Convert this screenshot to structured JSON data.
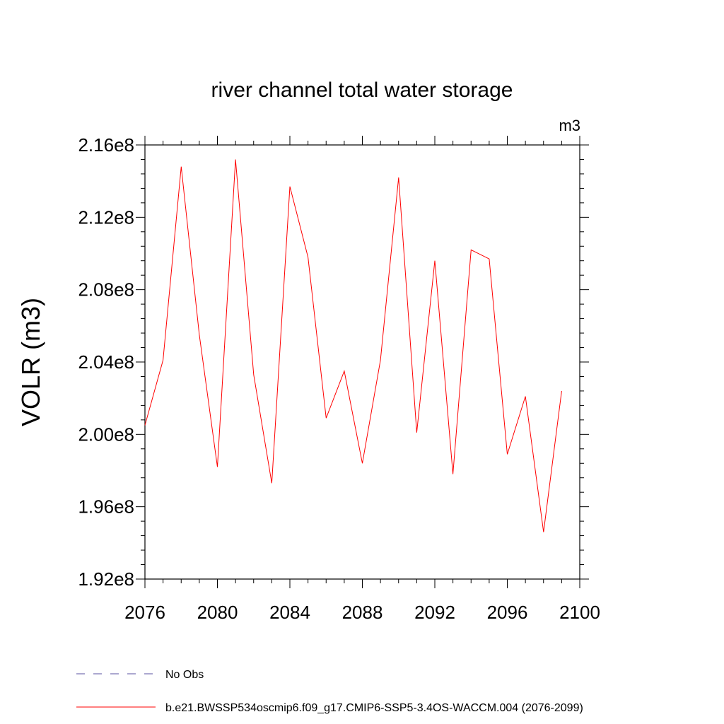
{
  "chart_data": {
    "type": "line",
    "title": "river channel total water storage",
    "units_label": "m3",
    "xlabel": "",
    "ylabel": "VOLR  (m3)",
    "xlim": [
      2076,
      2100
    ],
    "ylim": [
      192000000.0,
      216000000.0
    ],
    "x_ticks": [
      2076,
      2080,
      2084,
      2088,
      2092,
      2096,
      2100
    ],
    "x_tick_labels": [
      "2076",
      "2080",
      "2084",
      "2088",
      "2092",
      "2096",
      "2100"
    ],
    "y_ticks": [
      192000000.0,
      196000000.0,
      200000000.0,
      204000000.0,
      208000000.0,
      212000000.0,
      216000000.0
    ],
    "y_tick_labels": [
      "1.92e8",
      "1.96e8",
      "2.00e8",
      "2.04e8",
      "2.08e8",
      "2.12e8",
      "2.16e8"
    ],
    "grid": false,
    "legend_position": "bottom",
    "series": [
      {
        "name": "b.e21.BWSSP534oscmip6.f09_g17.CMIP6-SSP5-3.4OS-WACCM.004 (2076-2099)",
        "color": "#ff0000",
        "style": "solid",
        "x": [
          2076,
          2077,
          2078,
          2079,
          2080,
          2081,
          2082,
          2083,
          2084,
          2085,
          2086,
          2087,
          2088,
          2089,
          2090,
          2091,
          2092,
          2093,
          2094,
          2095,
          2096,
          2097,
          2098,
          2099
        ],
        "values": [
          200500000.0,
          204100000.0,
          214800000.0,
          205500000.0,
          198200000.0,
          215200000.0,
          203300000.0,
          197300000.0,
          213700000.0,
          209800000.0,
          200900000.0,
          203500000.0,
          198400000.0,
          204100000.0,
          214200000.0,
          200100000.0,
          209600000.0,
          197800000.0,
          210200000.0,
          209700000.0,
          198900000.0,
          202100000.0,
          194600000.0,
          202400000.0
        ]
      }
    ],
    "legend": [
      {
        "label": "No Obs",
        "color": "#5a50a0",
        "style": "dashed"
      },
      {
        "label": "b.e21.BWSSP534oscmip6.f09_g17.CMIP6-SSP5-3.4OS-WACCM.004 (2076-2099)",
        "color": "#ff0000",
        "style": "solid"
      }
    ]
  }
}
